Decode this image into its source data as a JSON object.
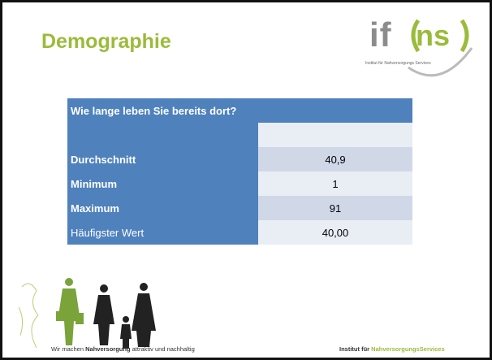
{
  "header": {
    "title": "Demographie"
  },
  "logo": {
    "main": "if",
    "accent": "ns",
    "subtitle": "Institut für Nahversorgungs Services"
  },
  "table": {
    "header": "Wie lange leben Sie bereits dort?",
    "rows": [
      [
        "Durchschnitt",
        "40,9"
      ],
      [
        "Minimum",
        "1"
      ],
      [
        "Maximum",
        "91"
      ],
      [
        "Häufigster Wert",
        "40,00"
      ]
    ]
  },
  "footer": {
    "left": [
      "Wir machen",
      "Nahversorgung",
      "attraktiv und nachhaltig"
    ],
    "right": [
      "Institut für",
      "NahversorgungsServices"
    ]
  }
}
